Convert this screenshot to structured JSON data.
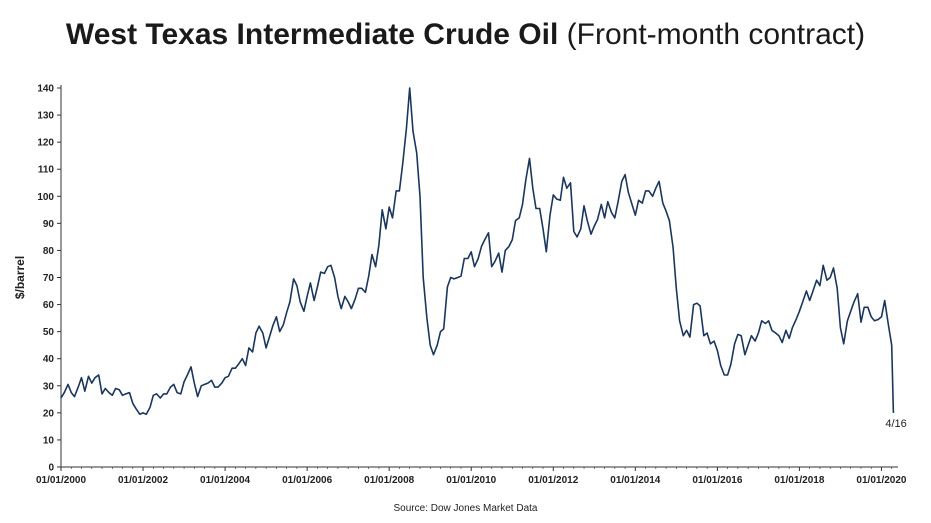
{
  "title": {
    "main": "West Texas Intermediate Crude Oil",
    "sub": "(Front-month contract)"
  },
  "source": "Source: Dow Jones Market Data",
  "colors": {
    "line": "#1b365d",
    "axis": "#333333",
    "text": "#222222"
  },
  "chart_data": {
    "type": "line",
    "title": "West Texas Intermediate Crude Oil (Front-month contract)",
    "xlabel": "",
    "ylabel": "$/barrel",
    "ylim": [
      0,
      140
    ],
    "yticks": [
      0,
      10,
      20,
      30,
      40,
      50,
      60,
      70,
      80,
      90,
      100,
      110,
      120,
      130,
      140
    ],
    "xlim": [
      2000.0,
      2020.33
    ],
    "xticks": [
      {
        "label": "01/01/2000",
        "x": 2000
      },
      {
        "label": "01/01/2002",
        "x": 2002
      },
      {
        "label": "01/01/2004",
        "x": 2004
      },
      {
        "label": "01/01/2006",
        "x": 2006
      },
      {
        "label": "01/01/2008",
        "x": 2008
      },
      {
        "label": "01/01/2010",
        "x": 2010
      },
      {
        "label": "01/01/2012",
        "x": 2012
      },
      {
        "label": "01/01/2014",
        "x": 2014
      },
      {
        "label": "01/01/2016",
        "x": 2016
      },
      {
        "label": "01/01/2018",
        "x": 2018
      },
      {
        "label": "01/01/2020",
        "x": 2020
      }
    ],
    "grid": false,
    "legend": "none",
    "annotation": {
      "text": "4/16",
      "x": 2020.29,
      "y": 20
    },
    "series": [
      {
        "points": [
          [
            2000.0,
            25.5
          ],
          [
            2000.08,
            27.5
          ],
          [
            2000.17,
            30.5
          ],
          [
            2000.25,
            27.5
          ],
          [
            2000.33,
            26
          ],
          [
            2000.42,
            29.5
          ],
          [
            2000.5,
            33
          ],
          [
            2000.58,
            28
          ],
          [
            2000.67,
            33.5
          ],
          [
            2000.75,
            31
          ],
          [
            2000.83,
            33
          ],
          [
            2000.92,
            34
          ],
          [
            2001.0,
            27
          ],
          [
            2001.08,
            29
          ],
          [
            2001.17,
            27.5
          ],
          [
            2001.25,
            26.5
          ],
          [
            2001.33,
            29
          ],
          [
            2001.42,
            28.5
          ],
          [
            2001.5,
            26.5
          ],
          [
            2001.58,
            27
          ],
          [
            2001.67,
            27.5
          ],
          [
            2001.75,
            23.5
          ],
          [
            2001.83,
            21.5
          ],
          [
            2001.92,
            19.5
          ],
          [
            2002.0,
            20
          ],
          [
            2002.08,
            19.5
          ],
          [
            2002.17,
            22
          ],
          [
            2002.25,
            26.5
          ],
          [
            2002.33,
            27
          ],
          [
            2002.42,
            25.5
          ],
          [
            2002.5,
            27
          ],
          [
            2002.58,
            27
          ],
          [
            2002.67,
            29.5
          ],
          [
            2002.75,
            30.5
          ],
          [
            2002.83,
            27.5
          ],
          [
            2002.92,
            27
          ],
          [
            2003.0,
            31.5
          ],
          [
            2003.08,
            34
          ],
          [
            2003.17,
            37
          ],
          [
            2003.25,
            31
          ],
          [
            2003.33,
            26
          ],
          [
            2003.42,
            30
          ],
          [
            2003.5,
            30.5
          ],
          [
            2003.58,
            31
          ],
          [
            2003.67,
            32
          ],
          [
            2003.75,
            29.5
          ],
          [
            2003.83,
            29.5
          ],
          [
            2003.92,
            31
          ],
          [
            2004.0,
            33
          ],
          [
            2004.08,
            33.5
          ],
          [
            2004.17,
            36.5
          ],
          [
            2004.25,
            36.5
          ],
          [
            2004.33,
            38
          ],
          [
            2004.42,
            40
          ],
          [
            2004.5,
            37.5
          ],
          [
            2004.58,
            44
          ],
          [
            2004.67,
            42.5
          ],
          [
            2004.75,
            49.5
          ],
          [
            2004.83,
            52
          ],
          [
            2004.92,
            49.5
          ],
          [
            2005.0,
            44
          ],
          [
            2005.08,
            48
          ],
          [
            2005.17,
            52.5
          ],
          [
            2005.25,
            55.5
          ],
          [
            2005.33,
            50
          ],
          [
            2005.42,
            52.5
          ],
          [
            2005.5,
            57
          ],
          [
            2005.58,
            61
          ],
          [
            2005.67,
            69.5
          ],
          [
            2005.75,
            67
          ],
          [
            2005.83,
            61
          ],
          [
            2005.92,
            57.5
          ],
          [
            2006.0,
            63
          ],
          [
            2006.08,
            68
          ],
          [
            2006.17,
            61.5
          ],
          [
            2006.25,
            66.5
          ],
          [
            2006.33,
            72
          ],
          [
            2006.42,
            71.5
          ],
          [
            2006.5,
            74
          ],
          [
            2006.58,
            74.5
          ],
          [
            2006.67,
            70
          ],
          [
            2006.75,
            63
          ],
          [
            2006.83,
            58.5
          ],
          [
            2006.92,
            63
          ],
          [
            2007.0,
            61
          ],
          [
            2007.08,
            58.5
          ],
          [
            2007.17,
            62
          ],
          [
            2007.25,
            66
          ],
          [
            2007.33,
            66
          ],
          [
            2007.42,
            64.5
          ],
          [
            2007.5,
            70.5
          ],
          [
            2007.58,
            78.5
          ],
          [
            2007.67,
            74
          ],
          [
            2007.75,
            82
          ],
          [
            2007.83,
            95
          ],
          [
            2007.92,
            88
          ],
          [
            2008.0,
            96
          ],
          [
            2008.08,
            92
          ],
          [
            2008.17,
            102
          ],
          [
            2008.25,
            102
          ],
          [
            2008.33,
            112
          ],
          [
            2008.42,
            125
          ],
          [
            2008.5,
            140
          ],
          [
            2008.58,
            124
          ],
          [
            2008.67,
            116
          ],
          [
            2008.75,
            100
          ],
          [
            2008.83,
            70
          ],
          [
            2008.92,
            55
          ],
          [
            2009.0,
            45
          ],
          [
            2009.08,
            41.5
          ],
          [
            2009.17,
            45
          ],
          [
            2009.25,
            50
          ],
          [
            2009.33,
            51
          ],
          [
            2009.42,
            66.5
          ],
          [
            2009.5,
            70
          ],
          [
            2009.58,
            69.5
          ],
          [
            2009.67,
            70
          ],
          [
            2009.75,
            70.5
          ],
          [
            2009.83,
            77
          ],
          [
            2009.92,
            77
          ],
          [
            2010.0,
            79.5
          ],
          [
            2010.08,
            74
          ],
          [
            2010.17,
            77
          ],
          [
            2010.25,
            81.5
          ],
          [
            2010.33,
            84
          ],
          [
            2010.42,
            86.5
          ],
          [
            2010.5,
            74
          ],
          [
            2010.58,
            76
          ],
          [
            2010.67,
            79
          ],
          [
            2010.75,
            72
          ],
          [
            2010.83,
            80
          ],
          [
            2010.92,
            81.5
          ],
          [
            2011.0,
            84
          ],
          [
            2011.08,
            91
          ],
          [
            2011.17,
            92
          ],
          [
            2011.25,
            97
          ],
          [
            2011.33,
            106
          ],
          [
            2011.42,
            114
          ],
          [
            2011.5,
            103
          ],
          [
            2011.58,
            95.5
          ],
          [
            2011.67,
            95.5
          ],
          [
            2011.75,
            88
          ],
          [
            2011.83,
            79.5
          ],
          [
            2011.92,
            93
          ],
          [
            2012.0,
            100.5
          ],
          [
            2012.08,
            99
          ],
          [
            2012.17,
            98.5
          ],
          [
            2012.25,
            107
          ],
          [
            2012.33,
            103
          ],
          [
            2012.42,
            105
          ],
          [
            2012.5,
            87
          ],
          [
            2012.58,
            85
          ],
          [
            2012.67,
            88
          ],
          [
            2012.75,
            96.5
          ],
          [
            2012.83,
            91
          ],
          [
            2012.92,
            86
          ],
          [
            2013.0,
            89
          ],
          [
            2013.08,
            91.5
          ],
          [
            2013.17,
            97
          ],
          [
            2013.25,
            92
          ],
          [
            2013.33,
            98
          ],
          [
            2013.42,
            94
          ],
          [
            2013.5,
            92
          ],
          [
            2013.58,
            98
          ],
          [
            2013.67,
            105.5
          ],
          [
            2013.75,
            108
          ],
          [
            2013.83,
            101.5
          ],
          [
            2013.92,
            97
          ],
          [
            2014.0,
            93
          ],
          [
            2014.08,
            98.5
          ],
          [
            2014.17,
            97.5
          ],
          [
            2014.25,
            102
          ],
          [
            2014.33,
            102
          ],
          [
            2014.42,
            100
          ],
          [
            2014.5,
            103
          ],
          [
            2014.58,
            105.5
          ],
          [
            2014.67,
            97.5
          ],
          [
            2014.75,
            94.5
          ],
          [
            2014.83,
            91
          ],
          [
            2014.92,
            81
          ],
          [
            2015.0,
            66
          ],
          [
            2015.08,
            54
          ],
          [
            2015.17,
            48.5
          ],
          [
            2015.25,
            50.5
          ],
          [
            2015.33,
            48
          ],
          [
            2015.42,
            60
          ],
          [
            2015.5,
            60.5
          ],
          [
            2015.58,
            59.5
          ],
          [
            2015.67,
            48.5
          ],
          [
            2015.75,
            49.5
          ],
          [
            2015.83,
            45.5
          ],
          [
            2015.92,
            46.5
          ],
          [
            2016.0,
            43
          ],
          [
            2016.08,
            37.5
          ],
          [
            2016.17,
            34
          ],
          [
            2016.25,
            34
          ],
          [
            2016.33,
            38
          ],
          [
            2016.42,
            45.5
          ],
          [
            2016.5,
            49
          ],
          [
            2016.58,
            48.5
          ],
          [
            2016.67,
            41.5
          ],
          [
            2016.75,
            45
          ],
          [
            2016.83,
            48.5
          ],
          [
            2016.92,
            46.5
          ],
          [
            2017.0,
            49.5
          ],
          [
            2017.08,
            54
          ],
          [
            2017.17,
            53
          ],
          [
            2017.25,
            54
          ],
          [
            2017.33,
            50.5
          ],
          [
            2017.42,
            49.5
          ],
          [
            2017.5,
            48.5
          ],
          [
            2017.58,
            46
          ],
          [
            2017.67,
            50.5
          ],
          [
            2017.75,
            47.5
          ],
          [
            2017.83,
            51.5
          ],
          [
            2017.92,
            54.5
          ],
          [
            2018.0,
            57.5
          ],
          [
            2018.08,
            61
          ],
          [
            2018.17,
            65
          ],
          [
            2018.25,
            61.5
          ],
          [
            2018.33,
            65
          ],
          [
            2018.42,
            69
          ],
          [
            2018.5,
            67
          ],
          [
            2018.58,
            74.5
          ],
          [
            2018.67,
            69
          ],
          [
            2018.75,
            70
          ],
          [
            2018.83,
            73.5
          ],
          [
            2018.92,
            66
          ],
          [
            2019.0,
            51.5
          ],
          [
            2019.08,
            45.5
          ],
          [
            2019.17,
            54
          ],
          [
            2019.25,
            57.5
          ],
          [
            2019.33,
            61
          ],
          [
            2019.42,
            64
          ],
          [
            2019.5,
            53.5
          ],
          [
            2019.58,
            59
          ],
          [
            2019.67,
            59
          ],
          [
            2019.75,
            55.5
          ],
          [
            2019.83,
            54
          ],
          [
            2019.92,
            54.5
          ],
          [
            2020.0,
            55.5
          ],
          [
            2020.08,
            61.5
          ],
          [
            2020.17,
            52.5
          ],
          [
            2020.25,
            45
          ],
          [
            2020.29,
            20
          ]
        ]
      }
    ]
  }
}
